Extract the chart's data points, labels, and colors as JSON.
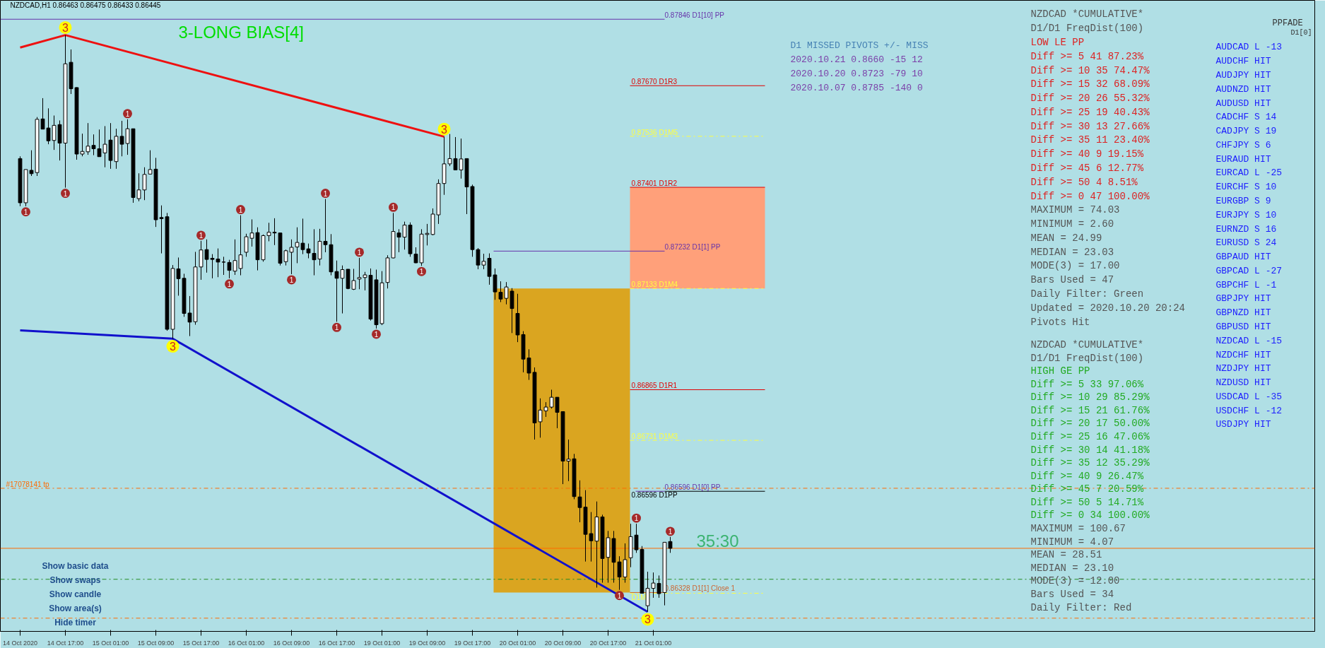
{
  "chart_data": {
    "type": "candlestick",
    "title": "NZDCAD,H1  0.86463 0.86475 0.86433 0.86445",
    "categories": [
      "14 Oct 2020",
      null,
      null,
      null,
      null,
      null,
      null,
      null,
      "14 Oct 17:00",
      null,
      null,
      null,
      null,
      null,
      null,
      null,
      "15 Oct 01:00",
      null,
      null,
      null,
      null,
      null,
      null,
      null,
      "15 Oct 09:00",
      null,
      null,
      null,
      null,
      null,
      null,
      null,
      "15 Oct 17:00",
      null,
      null,
      null,
      null,
      null,
      null,
      null,
      "16 Oct 01:00",
      null,
      null,
      null,
      null,
      null,
      null,
      null,
      "16 Oct 09:00",
      null,
      null,
      null,
      null,
      null,
      null,
      null,
      "16 Oct 17:00",
      null,
      null,
      null,
      null,
      null,
      null,
      null,
      "19 Oct 01:00",
      null,
      null,
      null,
      null,
      null,
      null,
      null,
      "19 Oct 09:00",
      null,
      null,
      null,
      null,
      null,
      null,
      null,
      "19 Oct 17:00",
      null,
      null,
      null,
      null,
      null,
      null,
      null,
      "20 Oct 01:00",
      null,
      null,
      null,
      null,
      null,
      null,
      null,
      "20 Oct 09:00",
      null,
      null,
      null,
      null,
      null,
      null,
      null,
      "20 Oct 17:00",
      null,
      null,
      null,
      null,
      null,
      null,
      null,
      "21 Oct 01:00",
      null,
      null,
      null
    ],
    "ohlc": [
      [
        0.87477,
        0.87483,
        0.87351,
        0.8736
      ],
      [
        0.8736,
        0.87448,
        0.87351,
        0.87448
      ],
      [
        0.87446,
        0.87499,
        0.87431,
        0.87437
      ],
      [
        0.8744,
        0.87587,
        0.87431,
        0.87581
      ],
      [
        0.87582,
        0.87637,
        0.87555,
        0.87555
      ],
      [
        0.87558,
        0.8761,
        0.87515,
        0.87524
      ],
      [
        0.87525,
        0.87591,
        0.875,
        0.87565
      ],
      [
        0.87567,
        0.87578,
        0.87472,
        0.87518
      ],
      [
        0.87518,
        0.87804,
        0.874,
        0.87728
      ],
      [
        0.87732,
        0.87766,
        0.87648,
        0.87662
      ],
      [
        0.87665,
        0.87666,
        0.87474,
        0.87489
      ],
      [
        0.87489,
        0.87543,
        0.87483,
        0.87496
      ],
      [
        0.87495,
        0.87571,
        0.87487,
        0.8751
      ],
      [
        0.87512,
        0.87541,
        0.87486,
        0.87503
      ],
      [
        0.87503,
        0.87554,
        0.87482,
        0.87482
      ],
      [
        0.87492,
        0.87563,
        0.87454,
        0.87515
      ],
      [
        0.87526,
        0.87571,
        0.8745,
        0.87472
      ],
      [
        0.87469,
        0.87556,
        0.8745,
        0.87536
      ],
      [
        0.87536,
        0.87577,
        0.87483,
        0.87515
      ],
      [
        0.87517,
        0.87581,
        0.87487,
        0.87556
      ],
      [
        0.87556,
        0.87556,
        0.8736,
        0.87374
      ],
      [
        0.87371,
        0.87438,
        0.87364,
        0.87394
      ],
      [
        0.87394,
        0.87454,
        0.87367,
        0.87435
      ],
      [
        0.87436,
        0.87499,
        0.87436,
        0.87448
      ],
      [
        0.87449,
        0.87479,
        0.87296,
        0.87315
      ],
      [
        0.87321,
        0.87353,
        0.87226,
        0.87318
      ],
      [
        0.87323,
        0.87333,
        0.87021,
        0.87025
      ],
      [
        0.87025,
        0.87195,
        0.87,
        0.87186
      ],
      [
        0.87185,
        0.87215,
        0.87114,
        0.87159
      ],
      [
        0.8716,
        0.87172,
        0.87058,
        0.87067
      ],
      [
        0.87068,
        0.87113,
        0.87007,
        0.87044
      ],
      [
        0.87045,
        0.8723,
        0.87037,
        0.8719
      ],
      [
        0.8719,
        0.87259,
        0.87156,
        0.87235
      ],
      [
        0.87236,
        0.87263,
        0.87175,
        0.8721
      ],
      [
        0.87213,
        0.87224,
        0.8716,
        0.8721
      ],
      [
        0.87211,
        0.87239,
        0.87163,
        0.87203
      ],
      [
        0.87203,
        0.87217,
        0.87169,
        0.87203
      ],
      [
        0.87202,
        0.87209,
        0.8716,
        0.87181
      ],
      [
        0.87179,
        0.87263,
        0.87169,
        0.87207
      ],
      [
        0.87186,
        0.87327,
        0.87168,
        0.87222
      ],
      [
        0.87229,
        0.87278,
        0.87217,
        0.8727
      ],
      [
        0.87266,
        0.87316,
        0.87244,
        0.8728
      ],
      [
        0.87281,
        0.87295,
        0.87181,
        0.87209
      ],
      [
        0.87209,
        0.87276,
        0.87204,
        0.87273
      ],
      [
        0.87273,
        0.87307,
        0.87258,
        0.87282
      ],
      [
        0.87282,
        0.87319,
        0.87248,
        0.8728
      ],
      [
        0.8728,
        0.8728,
        0.87194,
        0.872
      ],
      [
        0.87204,
        0.87236,
        0.87194,
        0.87233
      ],
      [
        0.87229,
        0.87263,
        0.87171,
        0.87242
      ],
      [
        0.87243,
        0.87295,
        0.872,
        0.87255
      ],
      [
        0.87253,
        0.87318,
        0.87224,
        0.87236
      ],
      [
        0.87238,
        0.87252,
        0.87213,
        0.87227
      ],
      [
        0.87226,
        0.8729,
        0.87168,
        0.87209
      ],
      [
        0.87211,
        0.87291,
        0.87194,
        0.87258
      ],
      [
        0.87258,
        0.8737,
        0.87229,
        0.87249
      ],
      [
        0.87249,
        0.87277,
        0.87168,
        0.87177
      ],
      [
        0.87178,
        0.87207,
        0.87045,
        0.8716
      ],
      [
        0.8716,
        0.87194,
        0.87067,
        0.87183
      ],
      [
        0.87184,
        0.87184,
        0.87131,
        0.87133
      ],
      [
        0.87131,
        0.87185,
        0.87129,
        0.87154
      ],
      [
        0.87158,
        0.87214,
        0.87131,
        0.87162
      ],
      [
        0.87162,
        0.87177,
        0.87128,
        0.87169
      ],
      [
        0.87168,
        0.87186,
        0.87048,
        0.87052
      ],
      [
        0.87156,
        0.87183,
        0.87027,
        0.87037
      ],
      [
        0.8704,
        0.87179,
        0.87036,
        0.87148
      ],
      [
        0.87149,
        0.87221,
        0.87133,
        0.87214
      ],
      [
        0.87214,
        0.87333,
        0.87213,
        0.87284
      ],
      [
        0.8728,
        0.8729,
        0.87229,
        0.87269
      ],
      [
        0.87269,
        0.8731,
        0.87236,
        0.87301
      ],
      [
        0.87301,
        0.87308,
        0.87217,
        0.87225
      ],
      [
        0.87224,
        0.87242,
        0.872,
        0.87201
      ],
      [
        0.87201,
        0.8729,
        0.87193,
        0.87277
      ],
      [
        0.87276,
        0.87304,
        0.87247,
        0.87279
      ],
      [
        0.87276,
        0.87345,
        0.87274,
        0.8733
      ],
      [
        0.87328,
        0.87422,
        0.87304,
        0.87411
      ],
      [
        0.87411,
        0.87535,
        0.87381,
        0.87463
      ],
      [
        0.87463,
        0.87542,
        0.87457,
        0.87477
      ],
      [
        0.87477,
        0.87534,
        0.87446,
        0.87447
      ],
      [
        0.87447,
        0.8753,
        0.87424,
        0.87476
      ],
      [
        0.87477,
        0.87477,
        0.8733,
        0.87402
      ],
      [
        0.87403,
        0.87408,
        0.87217,
        0.87236
      ],
      [
        0.87236,
        0.8724,
        0.87184,
        0.87195
      ],
      [
        0.87195,
        0.87225,
        0.87184,
        0.87205
      ],
      [
        0.87213,
        0.87226,
        0.87143,
        0.87165
      ],
      [
        0.87169,
        0.87186,
        0.87103,
        0.87124
      ],
      [
        0.87123,
        0.87152,
        0.87097,
        0.87105
      ],
      [
        0.87107,
        0.8715,
        0.87091,
        0.87137
      ],
      [
        0.87126,
        0.87134,
        0.87015,
        0.8708
      ],
      [
        0.87067,
        0.87119,
        0.86991,
        0.8701
      ],
      [
        0.87011,
        0.8702,
        0.86911,
        0.86946
      ],
      [
        0.86949,
        0.86972,
        0.86891,
        0.86909
      ],
      [
        0.86911,
        0.86924,
        0.86733,
        0.86777
      ],
      [
        0.8678,
        0.86842,
        0.86738,
        0.86811
      ],
      [
        0.86809,
        0.86832,
        0.86793,
        0.86819
      ],
      [
        0.86819,
        0.86865,
        0.86815,
        0.86845
      ],
      [
        0.86845,
        0.86845,
        0.86763,
        0.86805
      ],
      [
        0.86807,
        0.86807,
        0.86615,
        0.86676
      ],
      [
        0.86676,
        0.86733,
        0.86623,
        0.86681
      ],
      [
        0.86682,
        0.86695,
        0.86575,
        0.86582
      ],
      [
        0.86581,
        0.86625,
        0.86514,
        0.86553
      ],
      [
        0.86554,
        0.86599,
        0.8641,
        0.86482
      ],
      [
        0.86484,
        0.86541,
        0.8641,
        0.86465
      ],
      [
        0.86464,
        0.86569,
        0.86341,
        0.86528
      ],
      [
        0.86528,
        0.86534,
        0.86354,
        0.86418
      ],
      [
        0.86421,
        0.86491,
        0.86354,
        0.86473
      ],
      [
        0.86471,
        0.86491,
        0.86354,
        0.86408
      ],
      [
        0.86409,
        0.86424,
        0.86335,
        0.86369
      ],
      [
        0.86369,
        0.86458,
        0.86354,
        0.86415
      ],
      [
        0.8642,
        0.8651,
        0.86395,
        0.86476
      ],
      [
        0.8648,
        0.8651,
        0.86433,
        0.86441
      ],
      [
        0.86442,
        0.86451,
        0.86326,
        0.86326
      ],
      [
        0.86293,
        0.86383,
        0.86277,
        0.86339
      ],
      [
        0.86339,
        0.86381,
        0.86314,
        0.86353
      ],
      [
        0.86352,
        0.86373,
        0.86314,
        0.86325
      ],
      [
        0.86328,
        0.86461,
        0.86294,
        0.86461
      ],
      [
        0.86463,
        0.86475,
        0.86433,
        0.86445
      ]
    ],
    "series": [
      {
        "type": "line",
        "color": "#ee1111",
        "values": [
          0.87771,
          null,
          null,
          null,
          null,
          null,
          null,
          null,
          0.87804,
          null,
          null,
          null,
          null,
          null,
          null,
          null,
          null,
          null,
          null,
          null,
          null,
          null,
          null,
          null,
          null,
          null,
          null,
          null,
          null,
          null,
          null,
          null,
          null,
          null,
          null,
          null,
          null,
          null,
          null,
          null,
          null,
          null,
          null,
          null,
          null,
          null,
          null,
          null,
          null,
          null,
          null,
          null,
          null,
          null,
          null,
          null,
          null,
          null,
          null,
          null,
          null,
          null,
          null,
          null,
          null,
          null,
          null,
          null,
          null,
          null,
          null,
          null,
          null,
          null,
          null,
          0.87535,
          null,
          null,
          null,
          null,
          null,
          null,
          null,
          null,
          null,
          null,
          null,
          null,
          null,
          null,
          null,
          null,
          null,
          null,
          null,
          null,
          null,
          null,
          null,
          null,
          null,
          null,
          null,
          null,
          null,
          null,
          null,
          null,
          null,
          null,
          null,
          null,
          null,
          null,
          null,
          null
        ]
      },
      {
        "type": "line",
        "color": "#1111cc",
        "values": [
          0.87022,
          null,
          null,
          null,
          null,
          null,
          null,
          null,
          null,
          null,
          null,
          null,
          null,
          null,
          null,
          null,
          null,
          null,
          null,
          null,
          null,
          null,
          null,
          null,
          null,
          null,
          null,
          0.87,
          null,
          null,
          null,
          null,
          null,
          null,
          null,
          null,
          null,
          null,
          null,
          null,
          null,
          null,
          null,
          null,
          null,
          null,
          null,
          null,
          null,
          null,
          null,
          null,
          null,
          null,
          null,
          null,
          null,
          null,
          null,
          null,
          null,
          null,
          null,
          null,
          null,
          null,
          null,
          null,
          null,
          null,
          null,
          null,
          null,
          null,
          null,
          null,
          null,
          null,
          null,
          null,
          null,
          null,
          null,
          null,
          null,
          null,
          null,
          null,
          null,
          null,
          null,
          null,
          null,
          null,
          null,
          null,
          null,
          null,
          null,
          null,
          null,
          null,
          null,
          null,
          null,
          null,
          null,
          null,
          null,
          null,
          null,
          0.86277,
          null,
          null,
          null,
          null
        ]
      },
      {
        "type": "scatter",
        "name": "3",
        "marker": "circle",
        "color": "#ffff00",
        "values": [
          null,
          null,
          null,
          null,
          null,
          null,
          null,
          null,
          0.87824,
          null,
          null,
          null,
          null,
          null,
          null,
          null,
          null,
          null,
          null,
          null,
          null,
          null,
          null,
          null,
          null,
          null,
          null,
          0.8698,
          null,
          null,
          null,
          null,
          null,
          null,
          null,
          null,
          null,
          null,
          null,
          null,
          null,
          null,
          null,
          null,
          null,
          null,
          null,
          null,
          null,
          null,
          null,
          null,
          null,
          null,
          null,
          null,
          null,
          null,
          null,
          null,
          null,
          null,
          null,
          null,
          null,
          null,
          null,
          null,
          null,
          null,
          null,
          null,
          null,
          null,
          null,
          0.87555,
          null,
          null,
          null,
          null,
          null,
          null,
          null,
          null,
          null,
          null,
          null,
          null,
          null,
          null,
          null,
          null,
          null,
          null,
          null,
          null,
          null,
          null,
          null,
          null,
          null,
          null,
          null,
          null,
          null,
          null,
          null,
          null,
          null,
          null,
          null,
          0.86257,
          null,
          null,
          null,
          null
        ]
      },
      {
        "type": "scatter",
        "name": "1",
        "marker": "circle",
        "color": "#a52a2a",
        "values": [
          null,
          0.87336,
          null,
          null,
          null,
          null,
          null,
          null,
          0.87385,
          null,
          null,
          null,
          null,
          null,
          null,
          null,
          null,
          null,
          null,
          0.87596,
          null,
          null,
          null,
          null,
          null,
          null,
          null,
          null,
          null,
          null,
          null,
          null,
          0.87274,
          null,
          null,
          null,
          null,
          0.87145,
          null,
          0.87342,
          null,
          null,
          null,
          null,
          null,
          null,
          null,
          null,
          0.87156,
          null,
          null,
          null,
          null,
          null,
          0.87385,
          null,
          0.8703,
          null,
          null,
          null,
          0.87229,
          null,
          null,
          0.87012,
          null,
          null,
          0.87348,
          null,
          null,
          null,
          null,
          0.87178,
          null,
          null,
          null,
          null,
          null,
          null,
          null,
          null,
          null,
          null,
          null,
          null,
          null,
          null,
          null,
          null,
          null,
          null,
          null,
          null,
          null,
          null,
          null,
          null,
          null,
          null,
          null,
          null,
          null,
          null,
          null,
          null,
          null,
          null,
          0.8632,
          null,
          null,
          0.86525,
          null,
          null,
          null,
          null,
          null,
          0.8649
        ]
      }
    ],
    "ylim": [
      0.86225,
      0.87896
    ],
    "tick_labels": "x",
    "grid": false,
    "bands": [
      {
        "axis": "y",
        "from": 0.86328,
        "to": 0.87133,
        "label": null,
        "color": "#daa520"
      },
      {
        "axis": "y",
        "from": 0.87133,
        "to": 0.87401,
        "label": null,
        "color": "#ffa07a"
      }
    ],
    "ref_lines": [
      {
        "axis": "y",
        "value": 0.87846,
        "label": "0.87846 D1[10] PP",
        "color": "#6633aa"
      },
      {
        "axis": "y",
        "value": 0.8767,
        "label": "0.87670 D1R3",
        "color": "#e00000"
      },
      {
        "axis": "y",
        "value": 0.87536,
        "label": "0.87536 D1M5",
        "color": "#ffff40",
        "line_style": "dashed"
      },
      {
        "axis": "y",
        "value": 0.87401,
        "label": "0.87401 D1R2",
        "color": "#e00000"
      },
      {
        "axis": "y",
        "value": 0.87232,
        "label": "0.87232 D1[1] PP",
        "color": "#6633aa"
      },
      {
        "axis": "y",
        "value": 0.87133,
        "label": "0.87133 D1M4",
        "color": "#ffff40",
        "line_style": "dashed"
      },
      {
        "axis": "y",
        "value": 0.86865,
        "label": "0.86865 D1R1",
        "color": "#e00000"
      },
      {
        "axis": "y",
        "value": 0.86731,
        "label": "0.86731 D1M3",
        "color": "#ffff40",
        "line_style": "dashed"
      },
      {
        "axis": "y",
        "value": 0.86596,
        "label": "0.86596 D1PP",
        "color": "#000000"
      },
      {
        "axis": "y",
        "value": 0.86596,
        "label": "0.86596 D1[0] PP",
        "color": "#6633aa"
      },
      {
        "axis": "y",
        "value": 0.86604,
        "label": "#17078141 tp",
        "color": "#ff6a00",
        "line_style": "dashed"
      },
      {
        "axis": "y",
        "value": 0.86328,
        "label": "0.86328 D1[1] Close 1",
        "color": "#cc6633"
      },
      {
        "axis": "y",
        "value": 0.86326,
        "label": "D1M2",
        "color": "#ffff40",
        "line_style": "dashed"
      },
      {
        "axis": "y",
        "value": 0.86445,
        "label": null,
        "color": "#ff6a00"
      },
      {
        "axis": "y",
        "value": 0.86363,
        "label": null,
        "color": "#228b22",
        "line_style": "dashed"
      },
      {
        "axis": "y",
        "value": 0.8626,
        "label": null,
        "color": "#ff6a00",
        "line_style": "dashed"
      }
    ],
    "annotations": [
      "3-LONG BIAS[4]",
      "35:30",
      "Show basic data",
      "Show swaps",
      "Show candle",
      "Show area(s)",
      "Hide timer",
      "D1 MISSED PIVOTS     +/-   MISS\n2020.10.21 0.8660    -15    12\n2020.10.20 0.8723    -79    10\n2020.10.07 0.8785   -140     0",
      "NZDCAD *CUMULATIVE*\nD1/D1 FreqDist(100)\nLOW LE PP\nDiff >= 5      41   87.23%\nDiff >= 10     35   74.47%\nDiff >= 15     32   68.09%\nDiff >= 20     26   55.32%\nDiff >= 25     19   40.43%\nDiff >= 30     13   27.66%\nDiff >= 35     11   23.40%\nDiff >= 40      9   19.15%\nDiff >= 45      6   12.77%\nDiff >= 50      4    8.51%\nDiff >= 0      47  100.00%\nMAXIMUM =          74.03\nMINIMUM =           2.60\nMEAN =             24.99\nMEDIAN =           23.03\nMODE(3) =          17.00\nBars Used = 47\nDaily Filter: Green\nUpdated = 2020.10.20 20:24\nPivots Hit",
      "NZDCAD *CUMULATIVE*\nD1/D1 FreqDist(100)\nHIGH GE PP\nDiff >= 5      33   97.06%\nDiff >= 10     29   85.29%\nDiff >= 15     21   61.76%\nDiff >= 20     17   50.00%\nDiff >= 25     16   47.06%\nDiff >= 30     14   41.18%\nDiff >= 35     12   35.29%\nDiff >= 40      9   26.47%\nDiff >= 45      7   20.59%\nDiff >= 50      5   14.71%\nDiff >= 0      34  100.00%\nMAXIMUM =         100.67\nMINIMUM =           4.07\nMEAN =             28.51\nMEDIAN =           23.10\nMODE(3) =          12.00\nBars Used = 34\nDaily Filter: Red",
      "AUDCAD  L -13\nAUDCHF    HIT\nAUDJPY    HIT\nAUDNZD    HIT\nAUDUSD    HIT\nCADCHF   S 14\nCADJPY   S 19\nCHFJPY    S 6\nEURAUD    HIT\nEURCAD  L -25\nEURCHF   S 10\nEURGBP    S 9\nEURJPY   S 10\nEURNZD   S 16\nEURUSD   S 24\nGBPAUD    HIT\nGBPCAD  L -27\nGBPCHF   L -1\nGBPJPY    HIT\nGBPNZD    HIT\nGBPUSD    HIT\nNZDCAD  L -15\nNZDCHF    HIT\nNZDJPY    HIT\nNZDUSD    HIT\nUSDCAD  L -35\nUSDCHF  L -12\nUSDJPY    HIT",
      "PPFADE",
      "D1[0]"
    ]
  }
}
